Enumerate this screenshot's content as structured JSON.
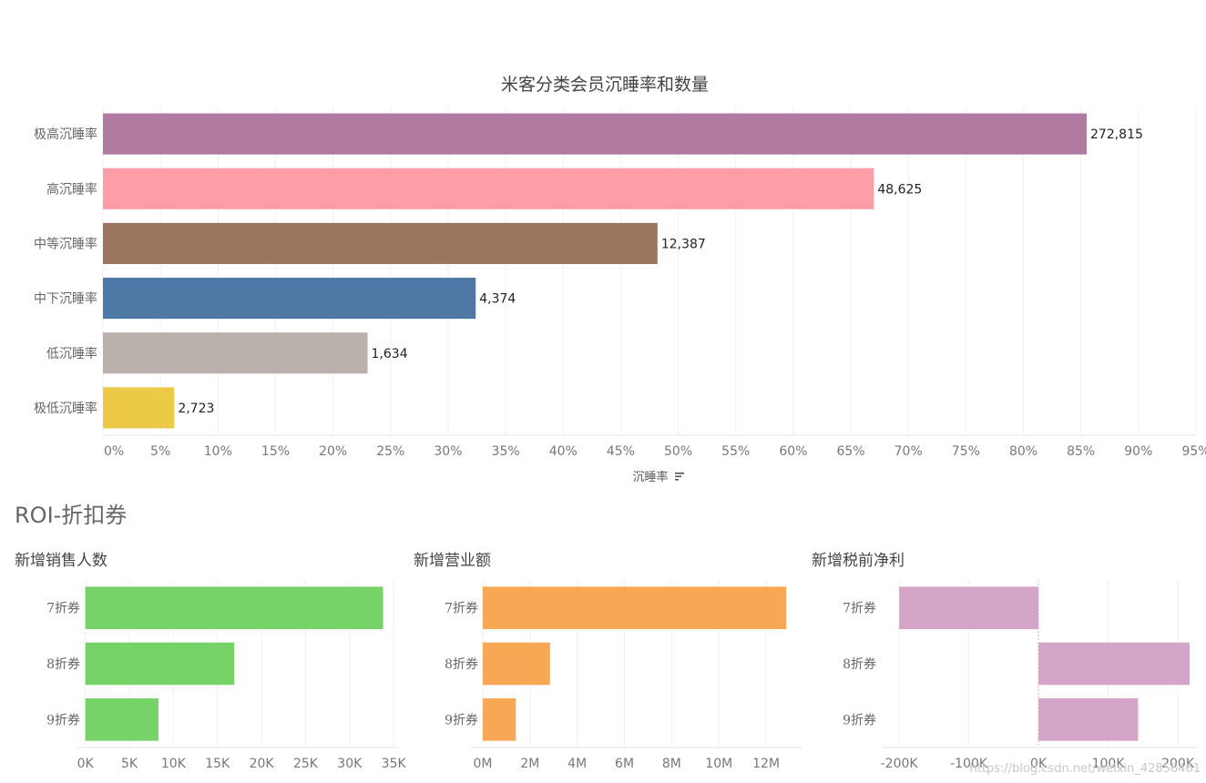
{
  "section_title": "ROI-折扣券",
  "watermark": "https://blog.csdn.net/weixin_42856461",
  "colors": {
    "green": "#76d368",
    "orange": "#f8a754",
    "pink": "#d4a5c9"
  },
  "chart_data": [
    {
      "type": "bar",
      "orientation": "horizontal",
      "title": "米客分类会员沉睡率和数量",
      "xlabel": "沉睡率",
      "sort_icon": "sort-descending-icon",
      "categories": [
        "极高沉睡率",
        "高沉睡率",
        "中等沉睡率",
        "中下沉睡率",
        "低沉睡率",
        "极低沉睡率"
      ],
      "values": [
        85.5,
        67.0,
        48.2,
        32.4,
        23.0,
        6.2
      ],
      "data_labels": [
        "272,815",
        "48,625",
        "12,387",
        "4,374",
        "1,634",
        "2,723"
      ],
      "colors": [
        "#b07aa1",
        "#ff9da7",
        "#9c755f",
        "#4e79a7",
        "#bab0ac",
        "#edc948"
      ],
      "xlim": [
        0,
        95
      ],
      "xticks": [
        0,
        5,
        10,
        15,
        20,
        25,
        30,
        35,
        40,
        45,
        50,
        55,
        60,
        65,
        70,
        75,
        80,
        85,
        90,
        95
      ],
      "xtick_labels": [
        "0%",
        "5%",
        "10%",
        "15%",
        "20%",
        "25%",
        "30%",
        "35%",
        "40%",
        "45%",
        "50%",
        "55%",
        "60%",
        "65%",
        "70%",
        "75%",
        "80%",
        "85%",
        "90%",
        "95%"
      ],
      "grid": true
    },
    {
      "type": "bar",
      "orientation": "horizontal",
      "title": "新增销售人数",
      "categories": [
        "7折券",
        "8折券",
        "9折券"
      ],
      "values": [
        33800,
        16900,
        8300
      ],
      "xlim": [
        -1000,
        35500
      ],
      "xticks": [
        0,
        5000,
        10000,
        15000,
        20000,
        25000,
        30000,
        35000
      ],
      "xtick_labels": [
        "0K",
        "5K",
        "10K",
        "15K",
        "20K",
        "25K",
        "30K",
        "35K"
      ],
      "color": "#76d368",
      "grid": true
    },
    {
      "type": "bar",
      "orientation": "horizontal",
      "title": "新增营业额",
      "categories": [
        "7折券",
        "8折券",
        "9折券"
      ],
      "values": [
        12850000,
        2850000,
        1400000
      ],
      "xlim": [
        -500000,
        13500000
      ],
      "xticks": [
        0,
        2000000,
        4000000,
        6000000,
        8000000,
        10000000,
        12000000
      ],
      "xtick_labels": [
        "0M",
        "2M",
        "4M",
        "6M",
        "8M",
        "10M",
        "12M"
      ],
      "color": "#f8a754",
      "grid": true
    },
    {
      "type": "bar",
      "orientation": "horizontal",
      "title": "新增税前净利",
      "categories": [
        "7折券",
        "8折券",
        "9折券"
      ],
      "values": [
        -200000,
        217000,
        143000
      ],
      "xlim": [
        -225000,
        230000
      ],
      "xticks": [
        -200000,
        -100000,
        0,
        100000,
        200000
      ],
      "xtick_labels": [
        "-200K",
        "-100K",
        "0K",
        "100K",
        "200K"
      ],
      "color": "#d4a5c9",
      "grid": true
    }
  ]
}
